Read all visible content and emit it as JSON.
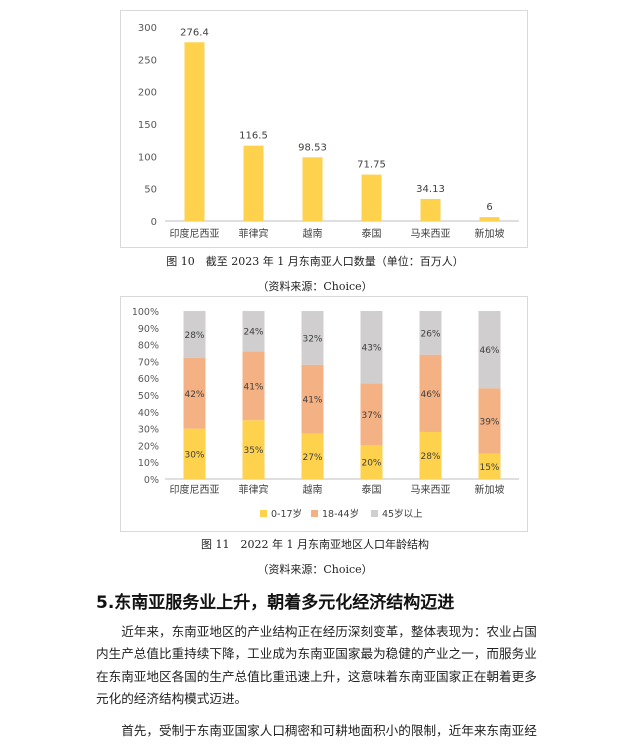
{
  "chart_data": [
    {
      "type": "bar",
      "categories": [
        "印度尼西亚",
        "菲律宾",
        "越南",
        "泰国",
        "马来西亚",
        "新加坡"
      ],
      "values": [
        276.4,
        116.5,
        98.53,
        71.75,
        34.13,
        6
      ],
      "value_labels": [
        "276.4",
        "116.5",
        "98.53",
        "71.75",
        "34.13",
        "6"
      ],
      "ylim": [
        0,
        300
      ],
      "yticks": [
        "0",
        "50",
        "100",
        "150",
        "200",
        "250",
        "300"
      ],
      "color": "#FFD24D"
    },
    {
      "type": "bar",
      "stacked": true,
      "categories": [
        "印度尼西亚",
        "菲律宾",
        "越南",
        "泰国",
        "马来西亚",
        "新加坡"
      ],
      "ylim": [
        0,
        100
      ],
      "yticks": [
        "0%",
        "10%",
        "20%",
        "30%",
        "40%",
        "50%",
        "60%",
        "70%",
        "80%",
        "90%",
        "100%"
      ],
      "series": [
        {
          "name": "0-17岁",
          "values": [
            30,
            35,
            27,
            20,
            28,
            15
          ],
          "labels": [
            "30%",
            "35%",
            "27%",
            "20%",
            "28%",
            "15%"
          ],
          "color": "#FFD24D"
        },
        {
          "name": "18-44岁",
          "values": [
            42,
            41,
            41,
            37,
            46,
            39
          ],
          "labels": [
            "42%",
            "41%",
            "41%",
            "37%",
            "46%",
            "39%"
          ],
          "color": "#F4B183"
        },
        {
          "name": "45岁以上",
          "values": [
            28,
            24,
            32,
            43,
            26,
            46
          ],
          "labels": [
            "28%",
            "24%",
            "32%",
            "43%",
            "26%",
            "46%"
          ],
          "color": "#D0CECE"
        }
      ],
      "legend_position": "bottom"
    }
  ],
  "figure10": {
    "caption": "图 10　截至 2023 年 1 月东南亚人口数量（单位：百万人）",
    "source": "（资料来源：Choice）"
  },
  "figure11": {
    "caption": "图 11　2022 年 1 月东南亚地区人口年龄结构",
    "source": "（资料来源：Choice）"
  },
  "section": {
    "title": "5.东南亚服务业上升，朝着多元化经济结构迈进"
  },
  "paragraph1": [
    "　　近年来，东南亚地区的产业结构正在经历深刻变革，整体表现为：农业占国",
    "内生产总值比重持续下降，工业成为东南亚国家最为稳健的产业之一，而服务业",
    "在东南亚地区各国的生产总值比重迅速上升，这意味着东南亚国家正在朝着更多",
    "元化的经济结构模式迈进。"
  ],
  "paragraph2": [
    "　　首先，受制于东南亚国家人口稠密和可耕地面积小的限制，近年来东南亚经"
  ]
}
